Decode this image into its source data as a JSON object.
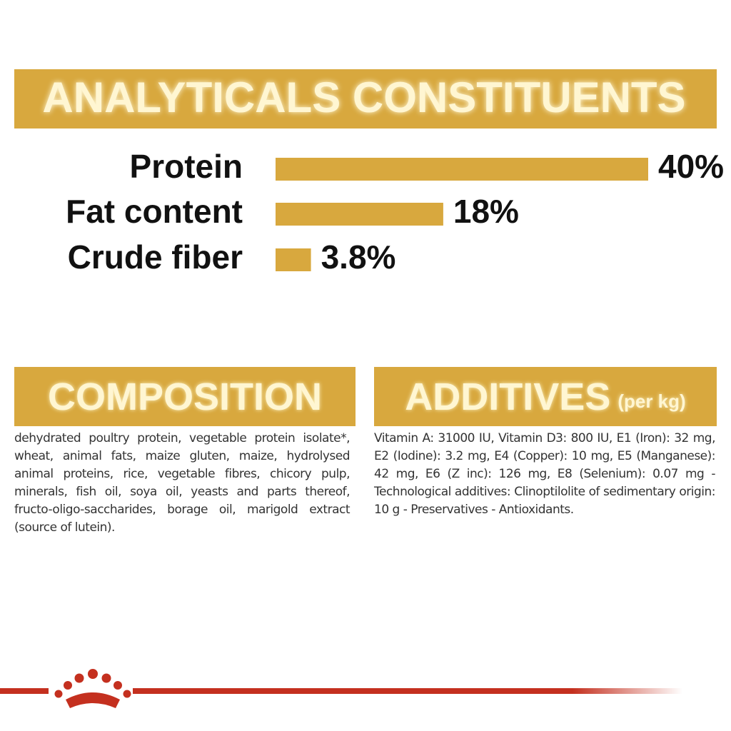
{
  "chart_data": {
    "type": "bar",
    "orientation": "horizontal",
    "title": "ANALYTICALS CONSTITUENTS",
    "categories": [
      "Protein",
      "Fat content",
      "Crude fiber"
    ],
    "values": [
      40,
      18,
      3.8
    ],
    "value_labels": [
      "40%",
      "18%",
      "3.8%"
    ],
    "color": "#d8a83e"
  },
  "composition": {
    "title": "COMPOSITION",
    "text": "dehydrated poultry protein, vegetable protein isolate*, wheat, animal fats, maize gluten, maize, hydrolysed animal proteins, rice, vegetable fibres, chicory pulp, minerals, fish oil, soya oil, yeasts and parts thereof, fructo-oligo-saccharides, borage oil, marigold extract (source of lutein)."
  },
  "additives": {
    "title": "ADDITIVES",
    "subtitle": "(per kg)",
    "text": "Vitamin A: 31000 IU, Vitamin D3: 800 IU, E1 (Iron): 32 mg, E2 (Iodine): 3.2 mg, E4 (Copper): 10 mg, E5 (Manganese): 42 mg, E6 (Z inc): 126 mg, E8 (Selenium): 0.07 mg -Technological additives: Clinoptilolite of sedimentary origin: 10 g - Preservatives - Antioxidants."
  }
}
